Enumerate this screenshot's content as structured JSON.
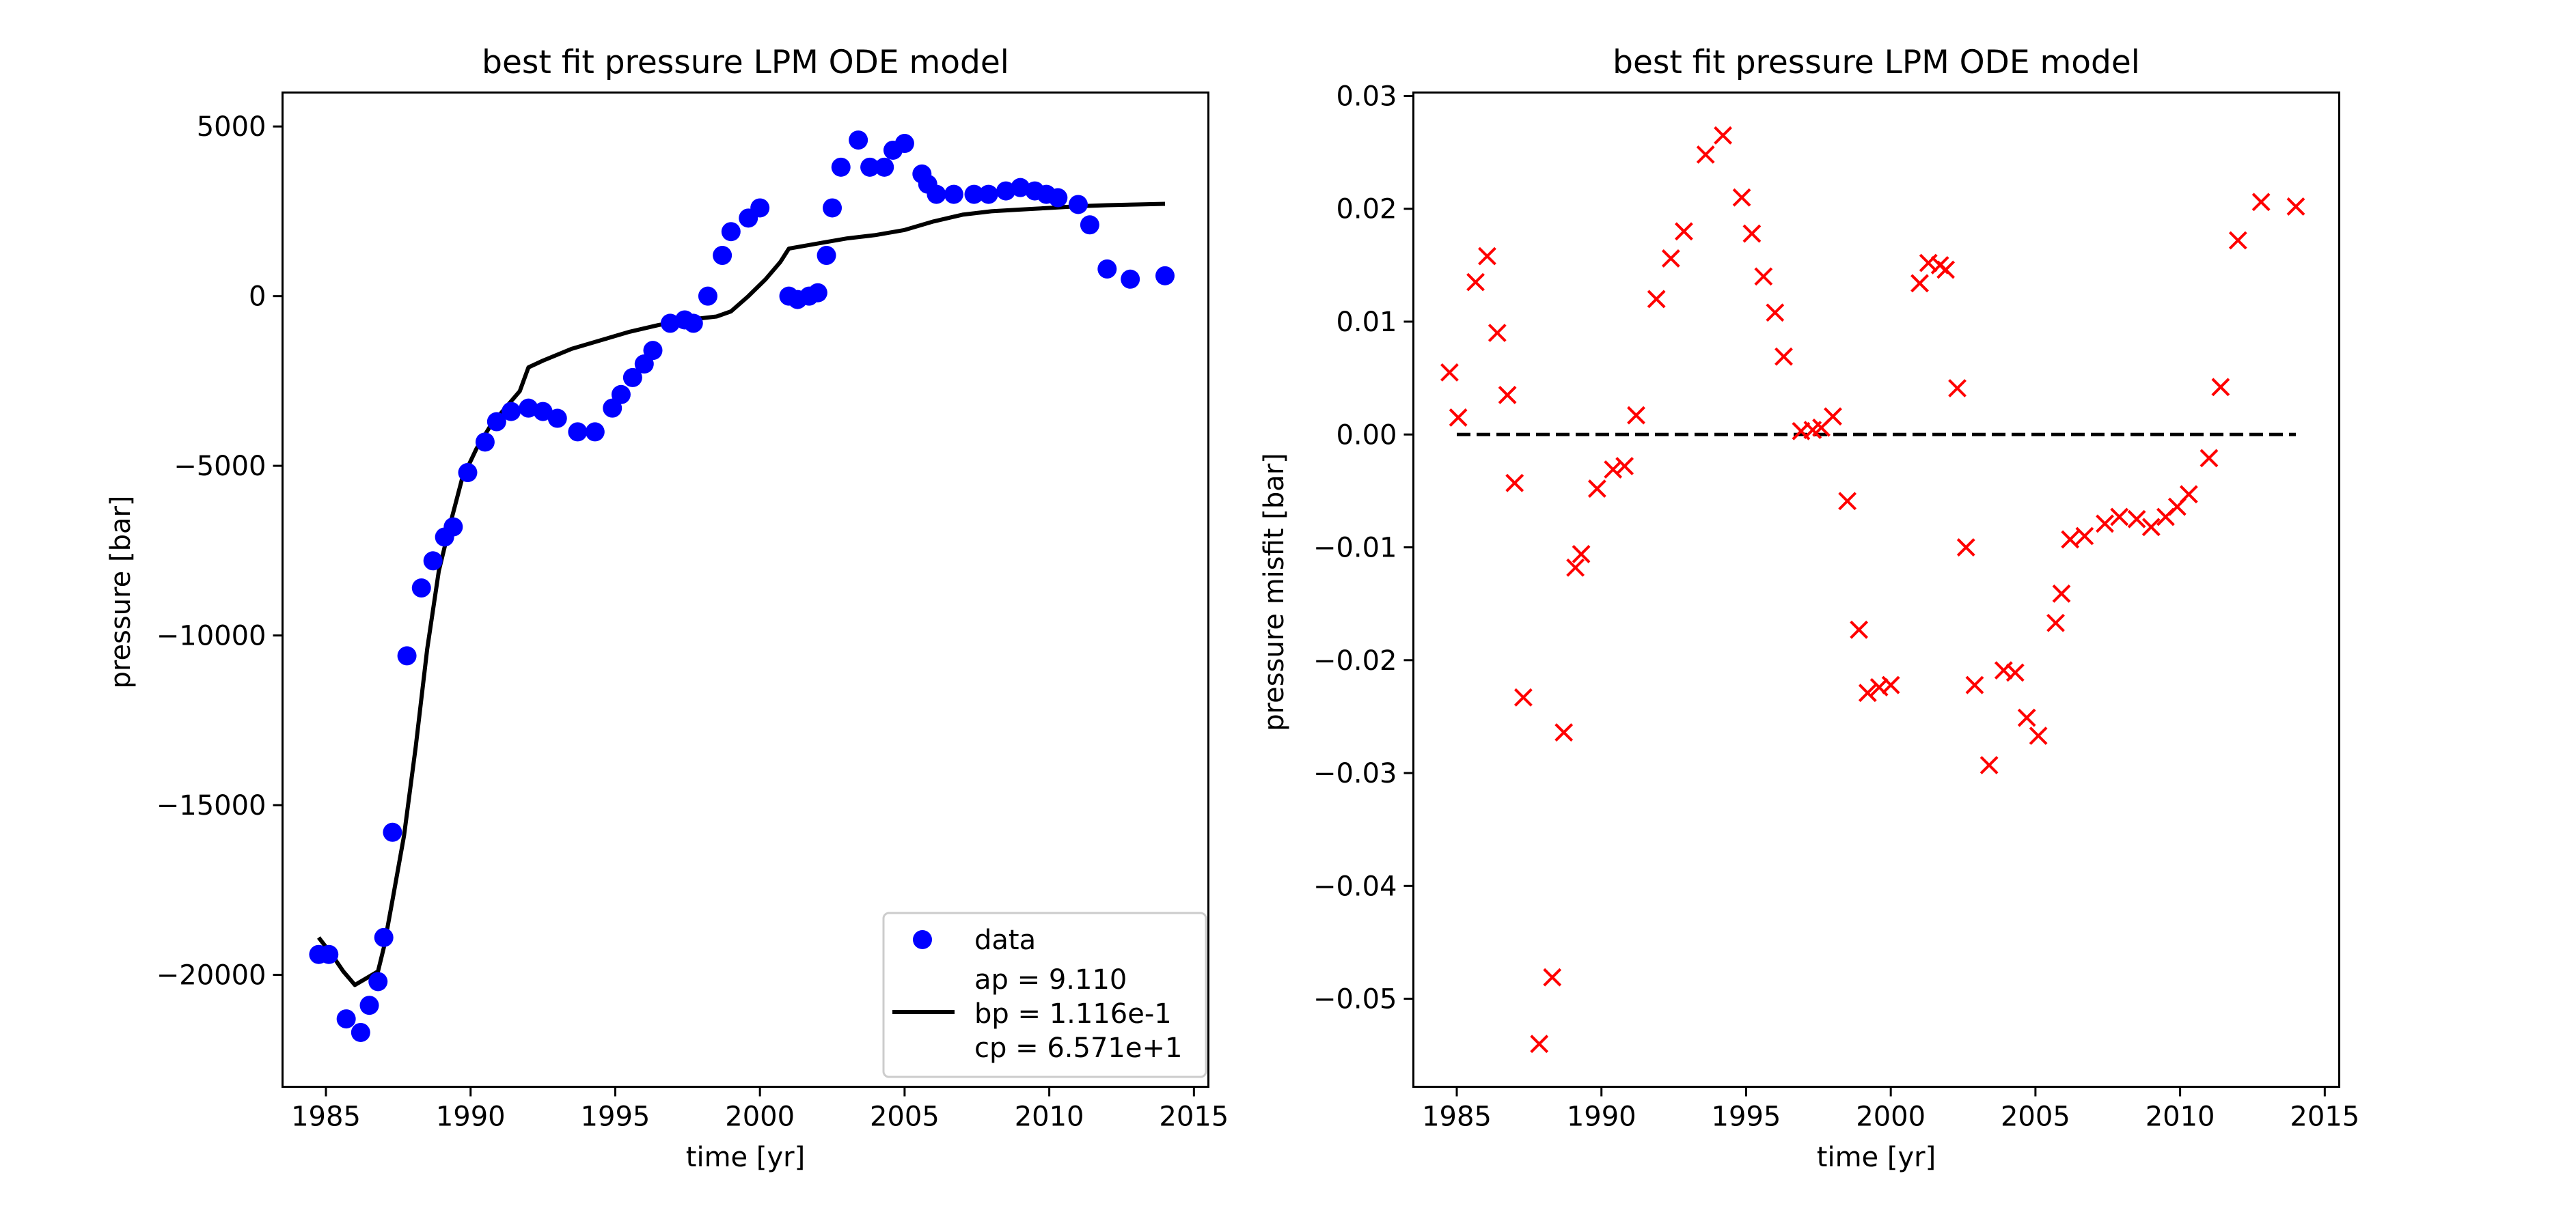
{
  "chart_data": [
    {
      "type": "scatter",
      "title": "best fit pressure LPM ODE model",
      "xlabel": "time [yr]",
      "ylabel": "pressure [bar]",
      "xlim": [
        1983.5,
        2015.5
      ],
      "ylim": [
        -23300,
        6000
      ],
      "xticks": [
        1985,
        1990,
        1995,
        2000,
        2005,
        2010,
        2015
      ],
      "xtick_labels": [
        "1985",
        "1990",
        "1995",
        "2000",
        "2005",
        "2010",
        "2015"
      ],
      "yticks": [
        -20000,
        -15000,
        -10000,
        -5000,
        0,
        5000
      ],
      "ytick_labels": [
        "−20000",
        "−15000",
        "−10000",
        "−5000",
        "0",
        "5000"
      ],
      "grid": false,
      "legend": {
        "location": "lower-right",
        "data_label": "data",
        "model_label": [
          "ap = 9.110",
          "bp = 1.116e-1",
          "cp = 6.571e+1"
        ]
      },
      "colors": {
        "data": "#0000ff",
        "model": "#000000"
      },
      "series": [
        {
          "name": "data",
          "kind": "markers",
          "x": [
            1984.75,
            1985.1,
            1985.7,
            1986.2,
            1986.5,
            1986.8,
            1987.0,
            1987.3,
            1987.8,
            1988.3,
            1988.7,
            1989.1,
            1989.4,
            1989.9,
            1990.5,
            1990.9,
            1991.4,
            1992.0,
            1992.5,
            1993.0,
            1993.7,
            1994.3,
            1994.9,
            1995.2,
            1995.6,
            1996.0,
            1996.3,
            1996.9,
            1997.4,
            1997.7,
            1998.2,
            1998.7,
            1999.0,
            1999.6,
            2000.0,
            2001.0,
            2001.3,
            2001.7,
            2002.0,
            2002.3,
            2002.5,
            2002.8,
            2003.4,
            2003.8,
            2004.3,
            2004.6,
            2005.0,
            2005.6,
            2005.8,
            2006.1,
            2006.7,
            2007.4,
            2007.9,
            2008.5,
            2009.0,
            2009.5,
            2009.9,
            2010.3,
            2011.0,
            2011.4,
            2012.0,
            2012.8,
            2014.0
          ],
          "y": [
            -19400,
            -19400,
            -21300,
            -21700,
            -20900,
            -20200,
            -18900,
            -15800,
            -10600,
            -8600,
            -7800,
            -7100,
            -6800,
            -5200,
            -4300,
            -3700,
            -3400,
            -3300,
            -3400,
            -3600,
            -4000,
            -4000,
            -3300,
            -2900,
            -2400,
            -2000,
            -1600,
            -800,
            -700,
            -800,
            0,
            1200,
            1900,
            2300,
            2600,
            0,
            -100,
            0,
            100,
            1200,
            2600,
            3800,
            4600,
            3800,
            3800,
            4300,
            4500,
            3600,
            3300,
            3000,
            3000,
            3000,
            3000,
            3100,
            3200,
            3100,
            3000,
            2900,
            2700,
            2100,
            800,
            500,
            600
          ]
        },
        {
          "name": "ap = 9.110 bp = 1.116e-1 cp = 6.571e+1",
          "kind": "line",
          "x": [
            1984.75,
            1985.2,
            1985.6,
            1986.0,
            1986.4,
            1986.8,
            1987.0,
            1987.3,
            1987.7,
            1988.1,
            1988.5,
            1988.9,
            1989.3,
            1989.7,
            1990.2,
            1990.7,
            1991.2,
            1991.7,
            1992.0,
            1992.5,
            1993.5,
            1994.5,
            1995.5,
            1996.5,
            1997.5,
            1998.5,
            1999.0,
            1999.6,
            2000.2,
            2000.7,
            2001.0,
            2002.0,
            2003.0,
            2004.0,
            2005.0,
            2006.0,
            2007.0,
            2008.0,
            2009.0,
            2010.0,
            2011.0,
            2012.0,
            2013.0,
            2014.0
          ],
          "y": [
            -18900,
            -19400,
            -19900,
            -20300,
            -20100,
            -19900,
            -19200,
            -17800,
            -15900,
            -13300,
            -10400,
            -8100,
            -6700,
            -5400,
            -4500,
            -3800,
            -3300,
            -2800,
            -2100,
            -1900,
            -1550,
            -1300,
            -1050,
            -850,
            -700,
            -600,
            -450,
            0,
            500,
            1000,
            1400,
            1550,
            1700,
            1800,
            1950,
            2200,
            2400,
            2500,
            2550,
            2600,
            2650,
            2680,
            2700,
            2720
          ]
        }
      ]
    },
    {
      "type": "scatter",
      "title": "best fit pressure LPM ODE model",
      "xlabel": "time [yr]",
      "ylabel": "pressure misfit [bar]",
      "xlim": [
        1983.5,
        2015.5
      ],
      "ylim": [
        -0.0578,
        0.0303
      ],
      "xticks": [
        1985,
        1990,
        1995,
        2000,
        2005,
        2010,
        2015
      ],
      "xtick_labels": [
        "1985",
        "1990",
        "1995",
        "2000",
        "2005",
        "2010",
        "2015"
      ],
      "yticks": [
        -0.05,
        -0.04,
        -0.03,
        -0.02,
        -0.01,
        0.0,
        0.01,
        0.02,
        0.03
      ],
      "ytick_labels": [
        "−0.05",
        "−0.04",
        "−0.03",
        "−0.02",
        "−0.01",
        "0.00",
        "0.01",
        "0.02",
        "0.03"
      ],
      "grid": false,
      "colors": {
        "misfit": "#ff0000",
        "zero_line": "#000000"
      },
      "zero_line": {
        "x": [
          1985,
          2014
        ],
        "y": 0.0,
        "style": "dashed"
      },
      "series": [
        {
          "kind": "x-markers",
          "x": [
            1984.75,
            1985.05,
            1985.65,
            1986.05,
            1986.4,
            1986.75,
            1987.0,
            1987.3,
            1987.85,
            1988.3,
            1988.7,
            1989.1,
            1989.3,
            1989.85,
            1990.4,
            1990.8,
            1991.2,
            1991.9,
            1992.4,
            1992.85,
            1993.6,
            1994.2,
            1994.85,
            1995.2,
            1995.6,
            1996.0,
            1996.3,
            1996.9,
            1997.3,
            1997.6,
            1998.0,
            1998.5,
            1998.9,
            1999.2,
            1999.6,
            2000.0,
            2001.0,
            2001.3,
            2001.7,
            2001.9,
            2002.3,
            2002.6,
            2002.9,
            2003.4,
            2003.9,
            2004.3,
            2004.7,
            2005.1,
            2005.7,
            2005.9,
            2006.2,
            2006.7,
            2007.4,
            2007.9,
            2008.5,
            2009.0,
            2009.5,
            2009.9,
            2010.3,
            2011.0,
            2011.4,
            2012.0,
            2012.8,
            2014.0
          ],
          "y": [
            0.0055,
            0.0015,
            0.0135,
            0.0158,
            0.009,
            0.0035,
            -0.0043,
            -0.0233,
            -0.054,
            -0.0481,
            -0.0264,
            -0.0118,
            -0.0106,
            -0.0048,
            -0.0031,
            -0.0028,
            0.0017,
            0.012,
            0.0156,
            0.018,
            0.0248,
            0.0265,
            0.021,
            0.0178,
            0.014,
            0.0108,
            0.0069,
            0.0003,
            0.0004,
            0.0006,
            0.0016,
            -0.0059,
            -0.0173,
            -0.0229,
            -0.0224,
            -0.0222,
            0.0134,
            0.0152,
            0.015,
            0.0146,
            0.0041,
            -0.01,
            -0.0222,
            -0.0293,
            -0.0209,
            -0.0211,
            -0.0251,
            -0.0267,
            -0.0167,
            -0.0141,
            -0.0093,
            -0.009,
            -0.0079,
            -0.0073,
            -0.0075,
            -0.0082,
            -0.0073,
            -0.0064,
            -0.0053,
            -0.0021,
            0.0042,
            0.0172,
            0.0206,
            0.0202
          ]
        }
      ]
    }
  ]
}
